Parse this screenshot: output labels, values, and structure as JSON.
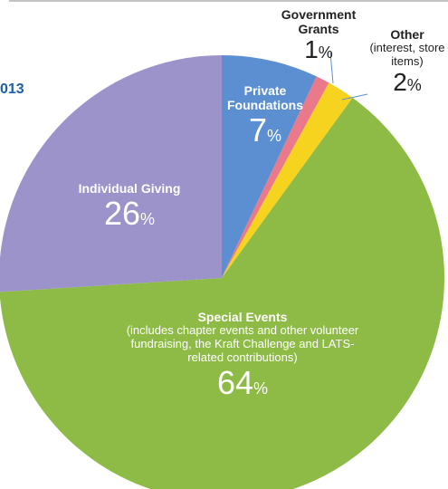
{
  "chart_data": {
    "type": "pie",
    "title": "013",
    "unit": "%",
    "categories": [
      "Private Foundations",
      "Government Grants",
      "Other",
      "Special Events",
      "Individual Giving"
    ],
    "values": [
      7,
      1,
      2,
      64,
      26
    ],
    "colors": [
      "#5b8fd2",
      "#e9798b",
      "#f6d31f",
      "#8dbb45",
      "#9b93c9"
    ],
    "category_notes": [
      null,
      null,
      "(interest, store items)",
      "(includes chapter events and other volunteer fundraising, the Kraft Challenge and LATS-related contributions)",
      null
    ]
  }
}
